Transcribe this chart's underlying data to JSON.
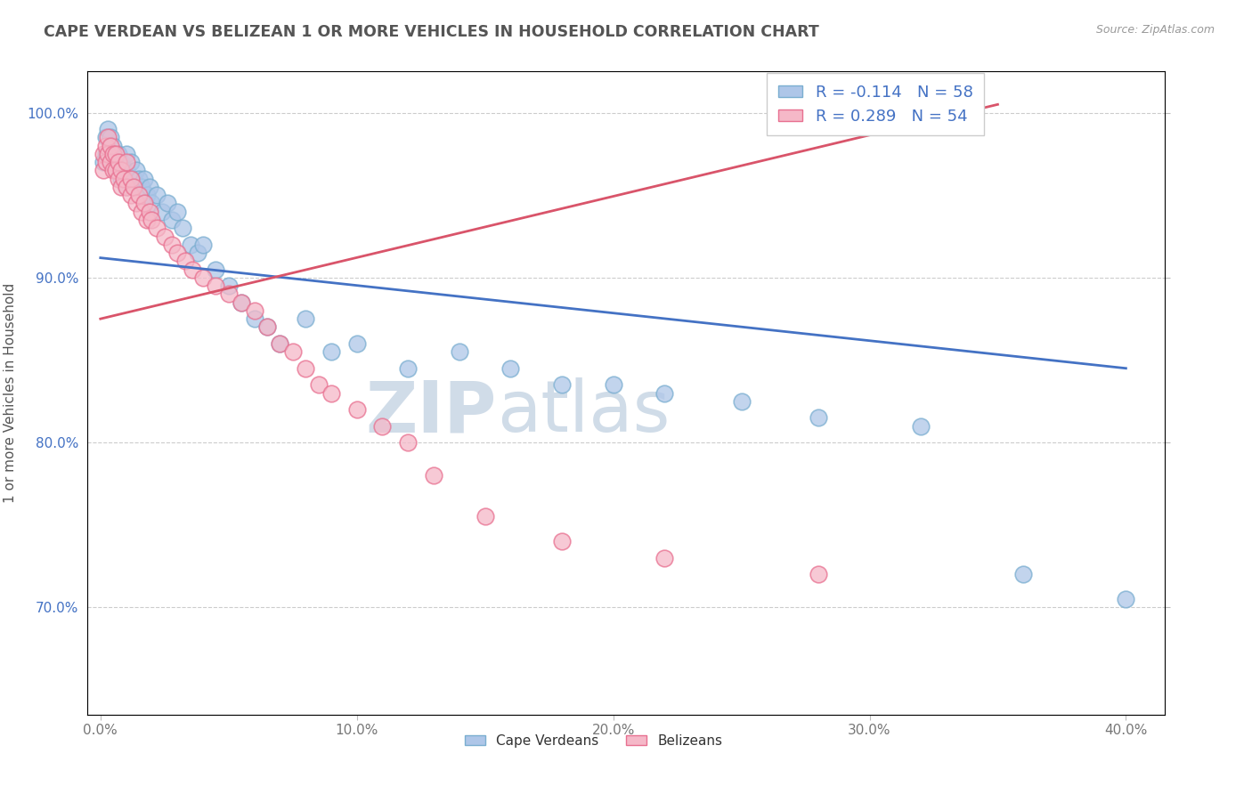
{
  "title": "CAPE VERDEAN VS BELIZEAN 1 OR MORE VEHICLES IN HOUSEHOLD CORRELATION CHART",
  "source_text": "Source: ZipAtlas.com",
  "ylabel": "1 or more Vehicles in Household",
  "xlim": [
    -0.005,
    0.415
  ],
  "ylim": [
    0.635,
    1.025
  ],
  "xticks": [
    0.0,
    0.1,
    0.2,
    0.3,
    0.4
  ],
  "xtick_labels": [
    "0.0%",
    "10.0%",
    "20.0%",
    "30.0%",
    "40.0%"
  ],
  "yticks": [
    0.7,
    0.8,
    0.9,
    1.0
  ],
  "ytick_labels": [
    "70.0%",
    "80.0%",
    "90.0%",
    "100.0%"
  ],
  "cape_verdean_color": "#aec6e8",
  "belizean_color": "#f5b8c8",
  "cape_verdean_edge": "#7aaed0",
  "belizean_edge": "#e87090",
  "trend_cape_color": "#4472c4",
  "trend_belize_color": "#d9546a",
  "R_cape": -0.114,
  "N_cape": 58,
  "R_belize": 0.289,
  "N_belize": 54,
  "legend_labels": [
    "Cape Verdeans",
    "Belizeans"
  ],
  "watermark_zip": "ZIP",
  "watermark_atlas": "atlas",
  "cape_trend_x0": 0.0,
  "cape_trend_y0": 0.912,
  "cape_trend_x1": 0.4,
  "cape_trend_y1": 0.845,
  "belize_trend_x0": 0.0,
  "belize_trend_y0": 0.875,
  "belize_trend_x1": 0.35,
  "belize_trend_y1": 1.005,
  "cape_x": [
    0.001,
    0.002,
    0.002,
    0.003,
    0.003,
    0.004,
    0.004,
    0.005,
    0.005,
    0.006,
    0.006,
    0.007,
    0.007,
    0.008,
    0.008,
    0.009,
    0.01,
    0.01,
    0.01,
    0.012,
    0.012,
    0.013,
    0.014,
    0.015,
    0.016,
    0.017,
    0.018,
    0.019,
    0.02,
    0.022,
    0.024,
    0.026,
    0.028,
    0.03,
    0.032,
    0.035,
    0.038,
    0.04,
    0.045,
    0.05,
    0.055,
    0.06,
    0.065,
    0.07,
    0.08,
    0.09,
    0.1,
    0.12,
    0.14,
    0.16,
    0.18,
    0.2,
    0.22,
    0.25,
    0.28,
    0.32,
    0.36,
    0.4
  ],
  "cape_y": [
    0.97,
    0.985,
    0.975,
    0.99,
    0.975,
    0.985,
    0.97,
    0.98,
    0.97,
    0.975,
    0.965,
    0.975,
    0.965,
    0.97,
    0.96,
    0.965,
    0.955,
    0.965,
    0.975,
    0.97,
    0.96,
    0.96,
    0.965,
    0.96,
    0.955,
    0.96,
    0.95,
    0.955,
    0.945,
    0.95,
    0.94,
    0.945,
    0.935,
    0.94,
    0.93,
    0.92,
    0.915,
    0.92,
    0.905,
    0.895,
    0.885,
    0.875,
    0.87,
    0.86,
    0.875,
    0.855,
    0.86,
    0.845,
    0.855,
    0.845,
    0.835,
    0.835,
    0.83,
    0.825,
    0.815,
    0.81,
    0.72,
    0.705
  ],
  "belize_x": [
    0.001,
    0.001,
    0.002,
    0.002,
    0.003,
    0.003,
    0.004,
    0.004,
    0.005,
    0.005,
    0.006,
    0.006,
    0.007,
    0.007,
    0.008,
    0.008,
    0.009,
    0.01,
    0.01,
    0.012,
    0.012,
    0.013,
    0.014,
    0.015,
    0.016,
    0.017,
    0.018,
    0.019,
    0.02,
    0.022,
    0.025,
    0.028,
    0.03,
    0.033,
    0.036,
    0.04,
    0.045,
    0.05,
    0.055,
    0.06,
    0.065,
    0.07,
    0.075,
    0.08,
    0.085,
    0.09,
    0.1,
    0.11,
    0.12,
    0.13,
    0.15,
    0.18,
    0.22,
    0.28
  ],
  "belize_y": [
    0.975,
    0.965,
    0.98,
    0.97,
    0.985,
    0.975,
    0.98,
    0.97,
    0.975,
    0.965,
    0.975,
    0.965,
    0.97,
    0.96,
    0.965,
    0.955,
    0.96,
    0.97,
    0.955,
    0.96,
    0.95,
    0.955,
    0.945,
    0.95,
    0.94,
    0.945,
    0.935,
    0.94,
    0.935,
    0.93,
    0.925,
    0.92,
    0.915,
    0.91,
    0.905,
    0.9,
    0.895,
    0.89,
    0.885,
    0.88,
    0.87,
    0.86,
    0.855,
    0.845,
    0.835,
    0.83,
    0.82,
    0.81,
    0.8,
    0.78,
    0.755,
    0.74,
    0.73,
    0.72
  ]
}
